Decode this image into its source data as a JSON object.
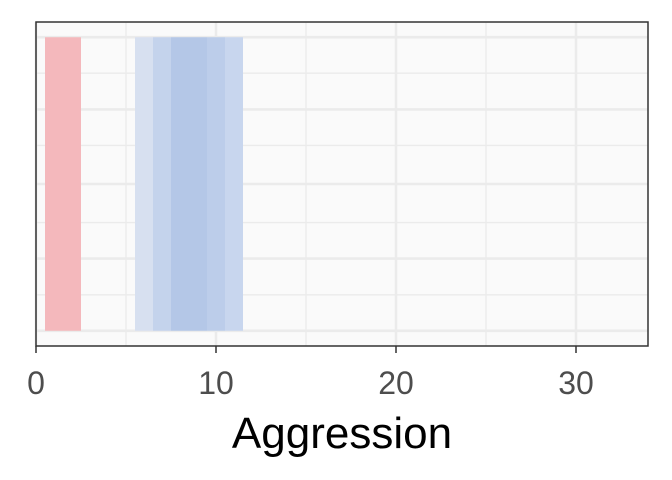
{
  "chart_data": {
    "type": "bar",
    "orientation": "horizontal-bands",
    "title": "",
    "xlabel": "Aggression",
    "ylabel": "",
    "xlim": [
      0,
      34
    ],
    "x_ticks": [
      0,
      10,
      20,
      30
    ],
    "x_tick_labels": [
      "0",
      "10",
      "20",
      "30"
    ],
    "grid": true,
    "legend": "none",
    "bands": [
      {
        "group": "red",
        "x_start": 0.5,
        "x_end": 2.5,
        "color": "#f4b8bc"
      },
      {
        "group": "blue",
        "x_start": 5.5,
        "x_end": 6.5,
        "color": "#d7e0f0"
      },
      {
        "group": "blue",
        "x_start": 6.5,
        "x_end": 7.5,
        "color": "#c4d3ec"
      },
      {
        "group": "blue",
        "x_start": 7.5,
        "x_end": 9.5,
        "color": "#b4c7e7"
      },
      {
        "group": "blue",
        "x_start": 9.5,
        "x_end": 10.5,
        "color": "#bccdea"
      },
      {
        "group": "blue",
        "x_start": 10.5,
        "x_end": 11.5,
        "color": "#c8d6ee"
      }
    ],
    "colors": {
      "panel_background": "#fafafa",
      "grid": "#ebebeb",
      "border": "#333333"
    }
  }
}
